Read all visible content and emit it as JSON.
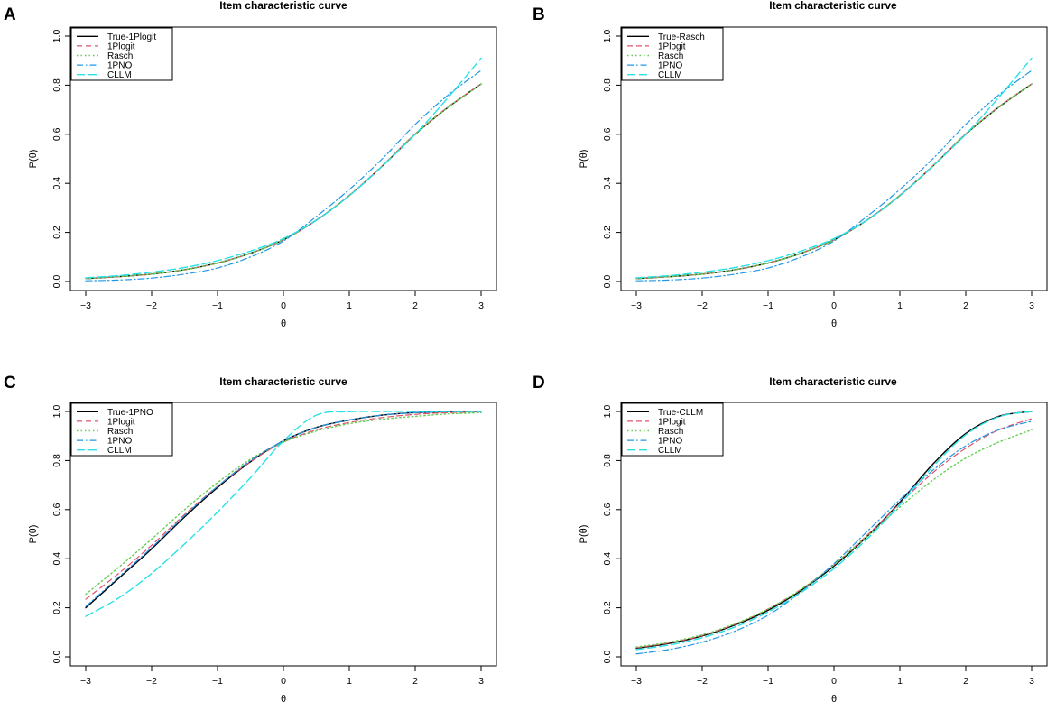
{
  "figure": {
    "panel_count": 4
  },
  "series_styles": [
    {
      "color": "#000000",
      "dash": "",
      "width": 1.4
    },
    {
      "color": "#DF536B",
      "dash": "6,4",
      "width": 1.2
    },
    {
      "color": "#61D04F",
      "dash": "1.5,3",
      "width": 1.4
    },
    {
      "color": "#2297E6",
      "dash": "7,3,1.5,3",
      "width": 1.2
    },
    {
      "color": "#28E2E5",
      "dash": "9,4",
      "width": 1.4
    }
  ],
  "chart_data": [
    {
      "panel": "A",
      "type": "line",
      "title": "Item characteristic curve",
      "xlabel": "θ",
      "ylabel": "P(θ)",
      "xlim": [
        -3,
        3
      ],
      "ylim": [
        0,
        1
      ],
      "xticks": [
        "−3",
        "−2",
        "−1",
        "0",
        "1",
        "2",
        "3"
      ],
      "yticks": [
        "0.0",
        "0.2",
        "0.4",
        "0.6",
        "0.8",
        "1.0"
      ],
      "legend_position": "top-left",
      "x": [
        -3,
        -2.5,
        -2,
        -1.5,
        -1,
        -0.5,
        0,
        0.5,
        1,
        1.5,
        2,
        2.5,
        3
      ],
      "series": [
        {
          "name": "True-1Plogit",
          "values": [
            0.012,
            0.02,
            0.03,
            0.048,
            0.075,
            0.115,
            0.17,
            0.25,
            0.35,
            0.47,
            0.6,
            0.71,
            0.805
          ]
        },
        {
          "name": "1Plogit",
          "values": [
            0.012,
            0.02,
            0.03,
            0.048,
            0.075,
            0.115,
            0.17,
            0.25,
            0.352,
            0.472,
            0.602,
            0.712,
            0.805
          ]
        },
        {
          "name": "Rasch",
          "values": [
            0.012,
            0.02,
            0.03,
            0.048,
            0.075,
            0.115,
            0.17,
            0.25,
            0.35,
            0.47,
            0.6,
            0.71,
            0.805
          ]
        },
        {
          "name": "1PNO",
          "values": [
            0.003,
            0.006,
            0.014,
            0.03,
            0.055,
            0.1,
            0.165,
            0.265,
            0.375,
            0.5,
            0.64,
            0.76,
            0.86
          ]
        },
        {
          "name": "CLLM",
          "values": [
            0.015,
            0.024,
            0.038,
            0.057,
            0.085,
            0.124,
            0.175,
            0.25,
            0.35,
            0.47,
            0.6,
            0.75,
            0.91
          ]
        }
      ]
    },
    {
      "panel": "B",
      "type": "line",
      "title": "Item characteristic curve",
      "xlabel": "θ",
      "ylabel": "P(θ)",
      "xlim": [
        -3,
        3
      ],
      "ylim": [
        0,
        1
      ],
      "xticks": [
        "−3",
        "−2",
        "−1",
        "0",
        "1",
        "2",
        "3"
      ],
      "yticks": [
        "0.0",
        "0.2",
        "0.4",
        "0.6",
        "0.8",
        "1.0"
      ],
      "legend_position": "top-left",
      "x": [
        -3,
        -2.5,
        -2,
        -1.5,
        -1,
        -0.5,
        0,
        0.5,
        1,
        1.5,
        2,
        2.5,
        3
      ],
      "series": [
        {
          "name": "True-Rasch",
          "values": [
            0.012,
            0.02,
            0.03,
            0.048,
            0.075,
            0.115,
            0.17,
            0.25,
            0.35,
            0.47,
            0.6,
            0.71,
            0.805
          ]
        },
        {
          "name": "1Plogit",
          "values": [
            0.012,
            0.02,
            0.03,
            0.048,
            0.075,
            0.115,
            0.17,
            0.25,
            0.352,
            0.472,
            0.602,
            0.712,
            0.805
          ]
        },
        {
          "name": "Rasch",
          "values": [
            0.012,
            0.02,
            0.03,
            0.048,
            0.075,
            0.115,
            0.17,
            0.25,
            0.35,
            0.47,
            0.6,
            0.71,
            0.805
          ]
        },
        {
          "name": "1PNO",
          "values": [
            0.003,
            0.006,
            0.014,
            0.03,
            0.055,
            0.1,
            0.165,
            0.265,
            0.375,
            0.5,
            0.64,
            0.76,
            0.86
          ]
        },
        {
          "name": "CLLM",
          "values": [
            0.015,
            0.024,
            0.038,
            0.057,
            0.085,
            0.124,
            0.175,
            0.25,
            0.35,
            0.47,
            0.6,
            0.75,
            0.91
          ]
        }
      ]
    },
    {
      "panel": "C",
      "type": "line",
      "title": "Item characteristic curve",
      "xlabel": "θ",
      "ylabel": "P(θ)",
      "xlim": [
        -3,
        3
      ],
      "ylim": [
        0,
        1
      ],
      "xticks": [
        "−3",
        "−2",
        "−1",
        "0",
        "1",
        "2",
        "3"
      ],
      "yticks": [
        "0.0",
        "0.2",
        "0.4",
        "0.6",
        "0.8",
        "1.0"
      ],
      "legend_position": "top-left",
      "x": [
        -3,
        -2.5,
        -2,
        -1.5,
        -1,
        -0.5,
        0,
        0.5,
        1,
        1.5,
        2,
        2.5,
        3
      ],
      "series": [
        {
          "name": "True-1PNO",
          "values": [
            0.2,
            0.32,
            0.44,
            0.57,
            0.69,
            0.795,
            0.88,
            0.935,
            0.965,
            0.985,
            0.995,
            0.999,
            1.0
          ]
        },
        {
          "name": "1Plogit",
          "values": [
            0.235,
            0.34,
            0.455,
            0.58,
            0.695,
            0.795,
            0.875,
            0.925,
            0.955,
            0.975,
            0.988,
            0.995,
            0.998
          ]
        },
        {
          "name": "Rasch",
          "values": [
            0.255,
            0.365,
            0.48,
            0.6,
            0.71,
            0.805,
            0.875,
            0.92,
            0.95,
            0.968,
            0.98,
            0.99,
            0.995
          ]
        },
        {
          "name": "1PNO",
          "values": [
            0.205,
            0.325,
            0.445,
            0.575,
            0.695,
            0.8,
            0.88,
            0.935,
            0.965,
            0.985,
            0.995,
            0.999,
            1.0
          ]
        },
        {
          "name": "CLLM",
          "values": [
            0.165,
            0.24,
            0.34,
            0.46,
            0.59,
            0.73,
            0.88,
            0.985,
            0.999,
            1.0,
            1.0,
            1.0,
            1.0
          ]
        }
      ]
    },
    {
      "panel": "D",
      "type": "line",
      "title": "Item characteristic curve",
      "xlabel": "θ",
      "ylabel": "P(θ)",
      "xlim": [
        -3,
        3
      ],
      "ylim": [
        0,
        1
      ],
      "xticks": [
        "−3",
        "−2",
        "−1",
        "0",
        "1",
        "2",
        "3"
      ],
      "yticks": [
        "0.0",
        "0.2",
        "0.4",
        "0.6",
        "0.8",
        "1.0"
      ],
      "legend_position": "top-left",
      "x": [
        -3,
        -2.5,
        -2,
        -1.5,
        -1,
        -0.5,
        0,
        0.5,
        1,
        1.5,
        2,
        2.5,
        3
      ],
      "series": [
        {
          "name": "True-CLLM",
          "values": [
            0.035,
            0.055,
            0.085,
            0.13,
            0.19,
            0.27,
            0.37,
            0.49,
            0.63,
            0.785,
            0.91,
            0.98,
            1.0
          ]
        },
        {
          "name": "1Plogit",
          "values": [
            0.037,
            0.057,
            0.087,
            0.133,
            0.195,
            0.275,
            0.375,
            0.495,
            0.625,
            0.75,
            0.85,
            0.925,
            0.97
          ]
        },
        {
          "name": "Rasch",
          "values": [
            0.04,
            0.06,
            0.09,
            0.135,
            0.195,
            0.275,
            0.375,
            0.49,
            0.61,
            0.72,
            0.81,
            0.875,
            0.925
          ]
        },
        {
          "name": "1PNO",
          "values": [
            0.012,
            0.03,
            0.06,
            0.105,
            0.17,
            0.265,
            0.38,
            0.51,
            0.64,
            0.76,
            0.86,
            0.925,
            0.96
          ]
        },
        {
          "name": "CLLM",
          "values": [
            0.03,
            0.048,
            0.078,
            0.122,
            0.183,
            0.262,
            0.36,
            0.48,
            0.62,
            0.775,
            0.905,
            0.978,
            1.0
          ]
        }
      ]
    }
  ]
}
